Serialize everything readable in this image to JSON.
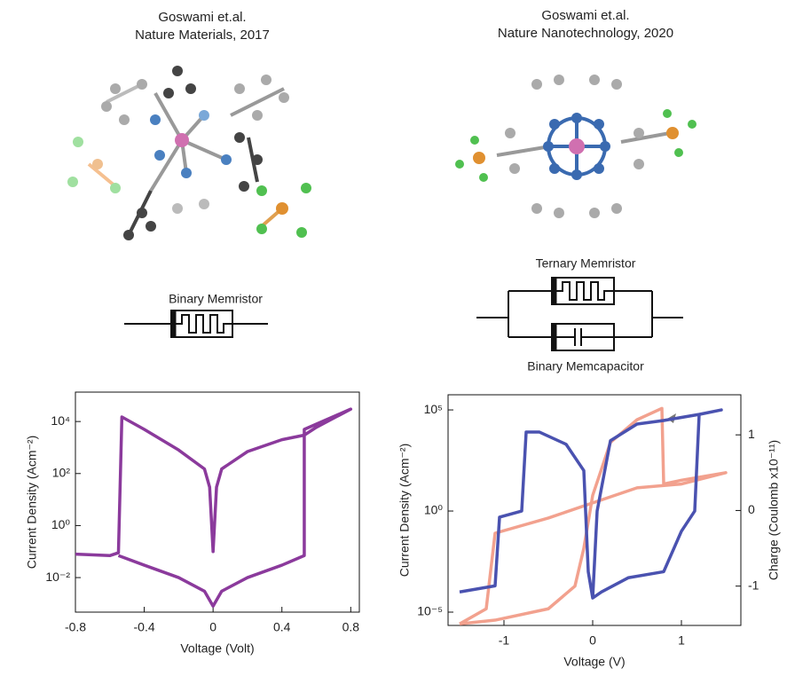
{
  "panels": [
    {
      "author": "Goswami et.al.",
      "journal": "Nature Materials, 2017",
      "device_label": "Binary Memristor"
    },
    {
      "author": "Goswami et.al.",
      "journal": "Nature Nanotechnology, 2020",
      "device_label": "Ternary Memristor",
      "device_label_2": "Binary Memcapacitor"
    }
  ],
  "chart_data": [
    {
      "type": "line",
      "xlabel": "Voltage (Volt)",
      "ylabel": "Current Density (Acm⁻²)",
      "xlim": [
        -0.8,
        0.85
      ],
      "xticks": [
        -0.8,
        -0.4,
        0,
        0.4,
        0.8
      ],
      "ylim": [
        0.00047,
        135000
      ],
      "log_y": true,
      "yticks": [
        {
          "value": 0.01,
          "label": "10⁻²"
        },
        {
          "value": 1,
          "label": "10⁰"
        },
        {
          "value": 100,
          "label": "10²"
        },
        {
          "value": 10000,
          "label": "10⁴"
        }
      ],
      "x": [
        -0.8,
        -0.6,
        -0.55,
        -0.53,
        -0.4,
        -0.2,
        -0.05,
        -0.02,
        0,
        0.02,
        0.05,
        0.2,
        0.4,
        0.53,
        0.6,
        0.8,
        0.53,
        0.53,
        0.4,
        0.2,
        0.05,
        0,
        -0.05,
        -0.2,
        -0.4,
        -0.55
      ],
      "series": [
        {
          "color": "#8b3a9c",
          "values": [
            0.08,
            0.07,
            0.09,
            15000,
            5000,
            800,
            150,
            30,
            0.1,
            30,
            150,
            700,
            2000,
            3000,
            6000,
            30000,
            5000,
            0.07,
            0.03,
            0.01,
            0.003,
            0.0008,
            0.003,
            0.01,
            0.03,
            0.07
          ]
        }
      ]
    },
    {
      "type": "line",
      "xlabel": "Voltage (V)",
      "ylabel": "Current Density (Acm⁻²)",
      "y2label": "Charge (Coulomb x10⁻¹¹)",
      "xlim": [
        -1.63,
        1.67
      ],
      "xticks": [
        -1,
        0,
        1
      ],
      "ylim": [
        2.2e-06,
        560000
      ],
      "log_y": true,
      "yticks": [
        {
          "value": 1e-05,
          "label": "10⁻⁵"
        },
        {
          "value": 1,
          "label": "10⁰"
        },
        {
          "value": 100000,
          "label": "10⁵"
        }
      ],
      "y2lim": [
        -1.52,
        1.53
      ],
      "y2ticks": [
        -1,
        0,
        1
      ],
      "x": [
        -1.5,
        -1.1,
        -1.05,
        -0.8,
        -0.75,
        -0.6,
        -0.3,
        -0.1,
        -0.05,
        0,
        0.05,
        0.2,
        0.5,
        0.8,
        1.2,
        1.45,
        1.2,
        1.15,
        1.0,
        0.8,
        0.4,
        0.1,
        0
      ],
      "series": [
        {
          "color": "#4a52b0",
          "values": [
            0.0001,
            0.0002,
            0.5,
            1,
            8000,
            8000,
            2000,
            100,
            0.001,
            5e-05,
            1,
            3000,
            20000,
            30000,
            60000,
            100000,
            60000,
            1,
            0.1,
            0.001,
            0.0005,
            0.0001,
            5e-05
          ]
        }
      ],
      "x2": [
        -1.5,
        -1.2,
        -1.1,
        -0.5,
        0,
        0.5,
        1.0,
        1.5,
        1.0,
        0.8,
        0.78,
        0.5,
        0.2,
        0,
        -0.1,
        -0.2,
        -0.5,
        -1.1,
        -1.5
      ],
      "series2": [
        {
          "color": "#f0907a",
          "axis": "y2",
          "values": [
            -1.5,
            -1.3,
            -0.3,
            -0.1,
            0.1,
            0.3,
            0.35,
            0.5,
            0.4,
            0.35,
            1.35,
            1.2,
            0.9,
            0.2,
            -0.5,
            -1.0,
            -1.3,
            -1.45,
            -1.5
          ]
        }
      ]
    }
  ]
}
